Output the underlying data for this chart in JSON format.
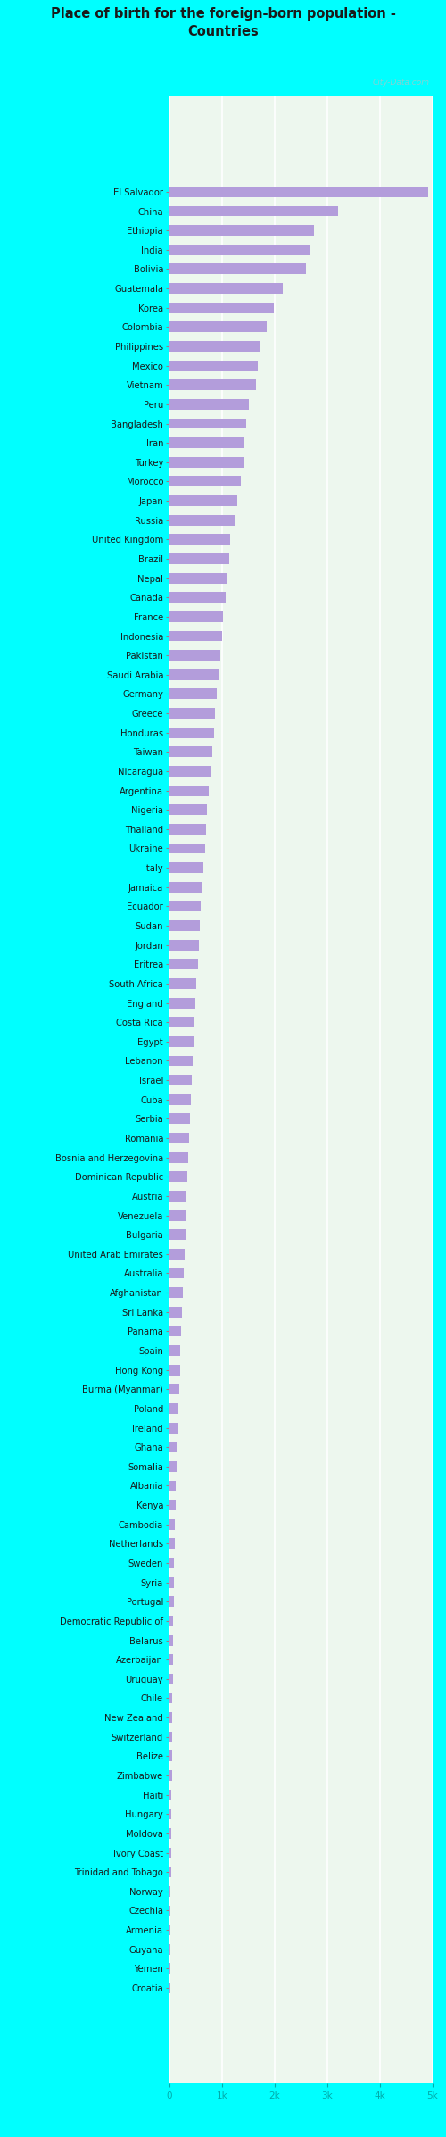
{
  "title": "Place of birth for the foreign-born population -\nCountries",
  "background_color": "#00FFFF",
  "bar_color": "#b39ddb",
  "plot_bg_color": "#edf7ee",
  "grid_color": "#ffffff",
  "xlabel_color": "#00AAAA",
  "title_color": "#1a1a1a",
  "watermark": "City-Data.com",
  "xlim": [
    0,
    5000
  ],
  "xtick_labels": [
    "0",
    "1k",
    "2k",
    "3k",
    "4k",
    "5k"
  ],
  "xtick_values": [
    0,
    1000,
    2000,
    3000,
    4000,
    5000
  ],
  "countries": [
    "El Salvador",
    "China",
    "Ethiopia",
    "India",
    "Bolivia",
    "Guatemala",
    "Korea",
    "Colombia",
    "Philippines",
    "Mexico",
    "Vietnam",
    "Peru",
    "Bangladesh",
    "Iran",
    "Turkey",
    "Morocco",
    "Japan",
    "Russia",
    "United Kingdom",
    "Brazil",
    "Nepal",
    "Canada",
    "France",
    "Indonesia",
    "Pakistan",
    "Saudi Arabia",
    "Germany",
    "Greece",
    "Honduras",
    "Taiwan",
    "Nicaragua",
    "Argentina",
    "Nigeria",
    "Thailand",
    "Ukraine",
    "Italy",
    "Jamaica",
    "Ecuador",
    "Sudan",
    "Jordan",
    "Eritrea",
    "South Africa",
    "England",
    "Costa Rica",
    "Egypt",
    "Lebanon",
    "Israel",
    "Cuba",
    "Serbia",
    "Romania",
    "Bosnia and Herzegovina",
    "Dominican Republic",
    "Austria",
    "Venezuela",
    "Bulgaria",
    "United Arab Emirates",
    "Australia",
    "Afghanistan",
    "Sri Lanka",
    "Panama",
    "Spain",
    "Hong Kong",
    "Burma (Myanmar)",
    "Poland",
    "Ireland",
    "Ghana",
    "Somalia",
    "Albania",
    "Kenya",
    "Cambodia",
    "Netherlands",
    "Sweden",
    "Syria",
    "Portugal",
    "Democratic Republic of",
    "Belarus",
    "Azerbaijan",
    "Uruguay",
    "Chile",
    "New Zealand",
    "Switzerland",
    "Belize",
    "Zimbabwe",
    "Haiti",
    "Hungary",
    "Moldova",
    "Ivory Coast",
    "Trinidad and Tobago",
    "Norway",
    "Czechia",
    "Armenia",
    "Guyana",
    "Yemen",
    "Croatia"
  ],
  "values": [
    4920,
    3200,
    2750,
    2680,
    2600,
    2150,
    1980,
    1850,
    1720,
    1680,
    1650,
    1500,
    1460,
    1430,
    1410,
    1350,
    1280,
    1240,
    1160,
    1130,
    1100,
    1060,
    1020,
    1000,
    970,
    940,
    900,
    870,
    840,
    810,
    780,
    750,
    720,
    695,
    670,
    650,
    625,
    600,
    575,
    555,
    535,
    515,
    495,
    475,
    455,
    440,
    425,
    410,
    390,
    375,
    360,
    345,
    330,
    315,
    300,
    285,
    270,
    255,
    240,
    225,
    210,
    195,
    180,
    165,
    150,
    140,
    130,
    122,
    114,
    107,
    100,
    93,
    87,
    81,
    75,
    70,
    65,
    61,
    57,
    53,
    50,
    46,
    43,
    40,
    37,
    34,
    31,
    28,
    25,
    22,
    19,
    16,
    13,
    10
  ]
}
